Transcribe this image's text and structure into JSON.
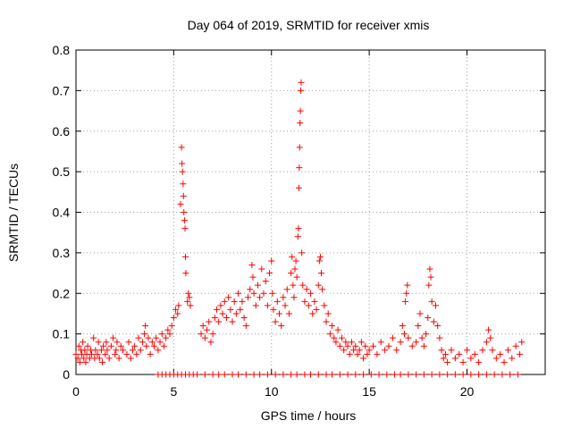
{
  "chart_data": {
    "type": "scatter",
    "title": "Day 064 of 2019, SRMTID for receiver xmis",
    "xlabel": "GPS time / hours",
    "ylabel": "SRMTID / TECUs",
    "xlim": [
      0,
      24
    ],
    "ylim": [
      0,
      0.8
    ],
    "xticks": [
      0,
      5,
      10,
      15,
      20
    ],
    "xtick_labels": [
      "0",
      "5",
      "10",
      "15",
      "20"
    ],
    "yticks": [
      0,
      0.1,
      0.2,
      0.3,
      0.4,
      0.5,
      0.6,
      0.7,
      0.8
    ],
    "ytick_labels": [
      "0",
      "0.1",
      "0.2",
      "0.3",
      "0.4",
      "0.5",
      "0.6",
      "0.7",
      "0.8"
    ],
    "grid": true,
    "marker": "+",
    "color": "#ff0000",
    "series": [
      {
        "name": "SRMTID",
        "points": [
          [
            0.0,
            0.05
          ],
          [
            0.1,
            0.04
          ],
          [
            0.15,
            0.07
          ],
          [
            0.2,
            0.03
          ],
          [
            0.25,
            0.06
          ],
          [
            0.3,
            0.05
          ],
          [
            0.35,
            0.08
          ],
          [
            0.4,
            0.04
          ],
          [
            0.45,
            0.06
          ],
          [
            0.5,
            0.03
          ],
          [
            0.55,
            0.05
          ],
          [
            0.6,
            0.07
          ],
          [
            0.7,
            0.04
          ],
          [
            0.75,
            0.06
          ],
          [
            0.8,
            0.05
          ],
          [
            0.9,
            0.09
          ],
          [
            0.95,
            0.04
          ],
          [
            1.0,
            0.06
          ],
          [
            1.1,
            0.05
          ],
          [
            1.15,
            0.08
          ],
          [
            1.2,
            0.04
          ],
          [
            1.3,
            0.06
          ],
          [
            1.35,
            0.03
          ],
          [
            1.4,
            0.07
          ],
          [
            1.5,
            0.05
          ],
          [
            1.55,
            0.08
          ],
          [
            1.6,
            0.06
          ],
          [
            1.7,
            0.04
          ],
          [
            1.8,
            0.07
          ],
          [
            1.9,
            0.09
          ],
          [
            2.0,
            0.05
          ],
          [
            2.05,
            0.06
          ],
          [
            2.1,
            0.08
          ],
          [
            2.2,
            0.04
          ],
          [
            2.3,
            0.07
          ],
          [
            2.4,
            0.06
          ],
          [
            2.6,
            0.05
          ],
          [
            2.7,
            0.08
          ],
          [
            2.8,
            0.04
          ],
          [
            2.9,
            0.06
          ],
          [
            3.0,
            0.07
          ],
          [
            3.1,
            0.05
          ],
          [
            3.2,
            0.09
          ],
          [
            3.3,
            0.06
          ],
          [
            3.4,
            0.08
          ],
          [
            3.5,
            0.1
          ],
          [
            3.55,
            0.12
          ],
          [
            3.6,
            0.07
          ],
          [
            3.7,
            0.09
          ],
          [
            3.8,
            0.05
          ],
          [
            3.9,
            0.08
          ],
          [
            4.0,
            0.07
          ],
          [
            4.1,
            0.09
          ],
          [
            4.2,
            0.06
          ],
          [
            4.3,
            0.08
          ],
          [
            4.4,
            0.1
          ],
          [
            4.5,
            0.07
          ],
          [
            4.6,
            0.09
          ],
          [
            4.7,
            0.11
          ],
          [
            4.8,
            0.1
          ],
          [
            4.9,
            0.12
          ],
          [
            5.0,
            0.14
          ],
          [
            5.1,
            0.16
          ],
          [
            5.2,
            0.15
          ],
          [
            5.25,
            0.17
          ],
          [
            5.35,
            0.42
          ],
          [
            5.4,
            0.56
          ],
          [
            5.42,
            0.52
          ],
          [
            5.45,
            0.5
          ],
          [
            5.48,
            0.47
          ],
          [
            5.5,
            0.44
          ],
          [
            5.52,
            0.4
          ],
          [
            5.55,
            0.38
          ],
          [
            5.58,
            0.36
          ],
          [
            5.6,
            0.29
          ],
          [
            5.62,
            0.25
          ],
          [
            5.7,
            0.18
          ],
          [
            5.75,
            0.2
          ],
          [
            5.8,
            0.19
          ],
          [
            5.85,
            0.17
          ],
          [
            6.4,
            0.1
          ],
          [
            6.5,
            0.12
          ],
          [
            6.6,
            0.09
          ],
          [
            6.7,
            0.11
          ],
          [
            6.8,
            0.13
          ],
          [
            6.9,
            0.08
          ],
          [
            7.0,
            0.1
          ],
          [
            7.1,
            0.14
          ],
          [
            7.2,
            0.16
          ],
          [
            7.3,
            0.13
          ],
          [
            7.4,
            0.17
          ],
          [
            7.5,
            0.15
          ],
          [
            7.6,
            0.18
          ],
          [
            7.7,
            0.14
          ],
          [
            7.8,
            0.19
          ],
          [
            7.9,
            0.16
          ],
          [
            8.0,
            0.13
          ],
          [
            8.1,
            0.18
          ],
          [
            8.2,
            0.15
          ],
          [
            8.3,
            0.2
          ],
          [
            8.4,
            0.16
          ],
          [
            8.5,
            0.18
          ],
          [
            8.6,
            0.14
          ],
          [
            8.7,
            0.12
          ],
          [
            8.8,
            0.19
          ],
          [
            8.9,
            0.21
          ],
          [
            9.0,
            0.27
          ],
          [
            9.05,
            0.24
          ],
          [
            9.1,
            0.2
          ],
          [
            9.2,
            0.17
          ],
          [
            9.3,
            0.22
          ],
          [
            9.4,
            0.19
          ],
          [
            9.5,
            0.26
          ],
          [
            9.6,
            0.2
          ],
          [
            9.7,
            0.23
          ],
          [
            9.8,
            0.17
          ],
          [
            9.9,
            0.25
          ],
          [
            10.0,
            0.28
          ],
          [
            10.05,
            0.2
          ],
          [
            10.1,
            0.16
          ],
          [
            10.2,
            0.13
          ],
          [
            10.3,
            0.18
          ],
          [
            10.4,
            0.15
          ],
          [
            10.5,
            0.12
          ],
          [
            10.6,
            0.19
          ],
          [
            10.7,
            0.17
          ],
          [
            10.8,
            0.21
          ],
          [
            10.9,
            0.15
          ],
          [
            11.0,
            0.25
          ],
          [
            11.05,
            0.29
          ],
          [
            11.1,
            0.22
          ],
          [
            11.15,
            0.19
          ],
          [
            11.2,
            0.26
          ],
          [
            11.25,
            0.28
          ],
          [
            11.3,
            0.24
          ],
          [
            11.35,
            0.34
          ],
          [
            11.38,
            0.36
          ],
          [
            11.4,
            0.46
          ],
          [
            11.42,
            0.51
          ],
          [
            11.44,
            0.56
          ],
          [
            11.46,
            0.62
          ],
          [
            11.48,
            0.65
          ],
          [
            11.5,
            0.7
          ],
          [
            11.52,
            0.72
          ],
          [
            11.55,
            0.3
          ],
          [
            11.6,
            0.22
          ],
          [
            11.7,
            0.18
          ],
          [
            11.8,
            0.21
          ],
          [
            11.9,
            0.17
          ],
          [
            12.0,
            0.2
          ],
          [
            12.1,
            0.15
          ],
          [
            12.2,
            0.18
          ],
          [
            12.3,
            0.16
          ],
          [
            12.4,
            0.22
          ],
          [
            12.45,
            0.28
          ],
          [
            12.5,
            0.29
          ],
          [
            12.55,
            0.25
          ],
          [
            12.6,
            0.21
          ],
          [
            12.7,
            0.17
          ],
          [
            12.8,
            0.13
          ],
          [
            12.9,
            0.15
          ],
          [
            13.0,
            0.1
          ],
          [
            13.1,
            0.12
          ],
          [
            13.2,
            0.09
          ],
          [
            13.3,
            0.08
          ],
          [
            13.4,
            0.11
          ],
          [
            13.5,
            0.07
          ],
          [
            13.6,
            0.09
          ],
          [
            13.7,
            0.06
          ],
          [
            13.8,
            0.08
          ],
          [
            13.9,
            0.07
          ],
          [
            14.0,
            0.05
          ],
          [
            14.1,
            0.08
          ],
          [
            14.2,
            0.06
          ],
          [
            14.3,
            0.07
          ],
          [
            14.4,
            0.05
          ],
          [
            14.5,
            0.06
          ],
          [
            14.6,
            0.08
          ],
          [
            14.7,
            0.04
          ],
          [
            14.8,
            0.07
          ],
          [
            14.9,
            0.05
          ],
          [
            15.0,
            0.06
          ],
          [
            15.2,
            0.07
          ],
          [
            15.4,
            0.05
          ],
          [
            15.6,
            0.08
          ],
          [
            15.8,
            0.06
          ],
          [
            16.0,
            0.07
          ],
          [
            16.2,
            0.09
          ],
          [
            16.4,
            0.06
          ],
          [
            16.6,
            0.08
          ],
          [
            16.7,
            0.12
          ],
          [
            16.8,
            0.1
          ],
          [
            16.85,
            0.18
          ],
          [
            16.9,
            0.2
          ],
          [
            16.95,
            0.22
          ],
          [
            17.0,
            0.09
          ],
          [
            17.2,
            0.07
          ],
          [
            17.4,
            0.08
          ],
          [
            17.5,
            0.12
          ],
          [
            17.6,
            0.15
          ],
          [
            17.7,
            0.09
          ],
          [
            17.8,
            0.07
          ],
          [
            17.9,
            0.1
          ],
          [
            18.0,
            0.14
          ],
          [
            18.05,
            0.22
          ],
          [
            18.1,
            0.26
          ],
          [
            18.15,
            0.24
          ],
          [
            18.2,
            0.18
          ],
          [
            18.3,
            0.13
          ],
          [
            18.4,
            0.17
          ],
          [
            18.5,
            0.12
          ],
          [
            18.6,
            0.09
          ],
          [
            18.7,
            0.06
          ],
          [
            18.8,
            0.04
          ],
          [
            18.9,
            0.05
          ],
          [
            19.0,
            0.03
          ],
          [
            19.2,
            0.06
          ],
          [
            19.4,
            0.04
          ],
          [
            19.6,
            0.05
          ],
          [
            19.8,
            0.03
          ],
          [
            20.0,
            0.06
          ],
          [
            20.2,
            0.04
          ],
          [
            20.4,
            0.05
          ],
          [
            20.6,
            0.03
          ],
          [
            20.8,
            0.06
          ],
          [
            21.0,
            0.08
          ],
          [
            21.1,
            0.11
          ],
          [
            21.2,
            0.09
          ],
          [
            21.3,
            0.06
          ],
          [
            21.5,
            0.04
          ],
          [
            21.7,
            0.05
          ],
          [
            21.9,
            0.03
          ],
          [
            22.1,
            0.06
          ],
          [
            22.3,
            0.04
          ],
          [
            22.5,
            0.07
          ],
          [
            22.7,
            0.05
          ],
          [
            22.8,
            0.08
          ]
        ],
        "baseline_points": [
          [
            4.2,
            0
          ],
          [
            4.4,
            0
          ],
          [
            4.6,
            0
          ],
          [
            4.8,
            0
          ],
          [
            5.0,
            0
          ],
          [
            5.2,
            0
          ],
          [
            5.4,
            0
          ],
          [
            5.6,
            0
          ],
          [
            5.8,
            0
          ],
          [
            6.0,
            0
          ],
          [
            6.2,
            0
          ],
          [
            6.6,
            0
          ],
          [
            7.0,
            0
          ],
          [
            7.3,
            0
          ],
          [
            7.6,
            0
          ],
          [
            8.0,
            0
          ],
          [
            8.3,
            0
          ],
          [
            8.7,
            0
          ],
          [
            9.1,
            0
          ],
          [
            9.4,
            0
          ],
          [
            9.8,
            0
          ],
          [
            10.2,
            0
          ],
          [
            10.6,
            0
          ],
          [
            11.0,
            0
          ],
          [
            11.3,
            0
          ],
          [
            11.7,
            0
          ],
          [
            12.0,
            0
          ],
          [
            12.4,
            0
          ],
          [
            12.8,
            0
          ],
          [
            13.1,
            0
          ],
          [
            13.5,
            0
          ],
          [
            13.9,
            0
          ],
          [
            14.3,
            0
          ],
          [
            14.7,
            0
          ],
          [
            15.1,
            0
          ],
          [
            15.5,
            0
          ],
          [
            15.9,
            0
          ],
          [
            16.3,
            0
          ],
          [
            16.6,
            0
          ],
          [
            17.0,
            0
          ],
          [
            17.4,
            0
          ],
          [
            17.8,
            0
          ],
          [
            18.2,
            0
          ],
          [
            18.6,
            0
          ],
          [
            19.0,
            0
          ],
          [
            19.4,
            0
          ],
          [
            19.8,
            0
          ],
          [
            20.2,
            0
          ],
          [
            20.6,
            0
          ],
          [
            21.0,
            0
          ],
          [
            21.4,
            0
          ],
          [
            21.8,
            0
          ],
          [
            22.2,
            0
          ],
          [
            22.6,
            0
          ]
        ]
      }
    ]
  }
}
